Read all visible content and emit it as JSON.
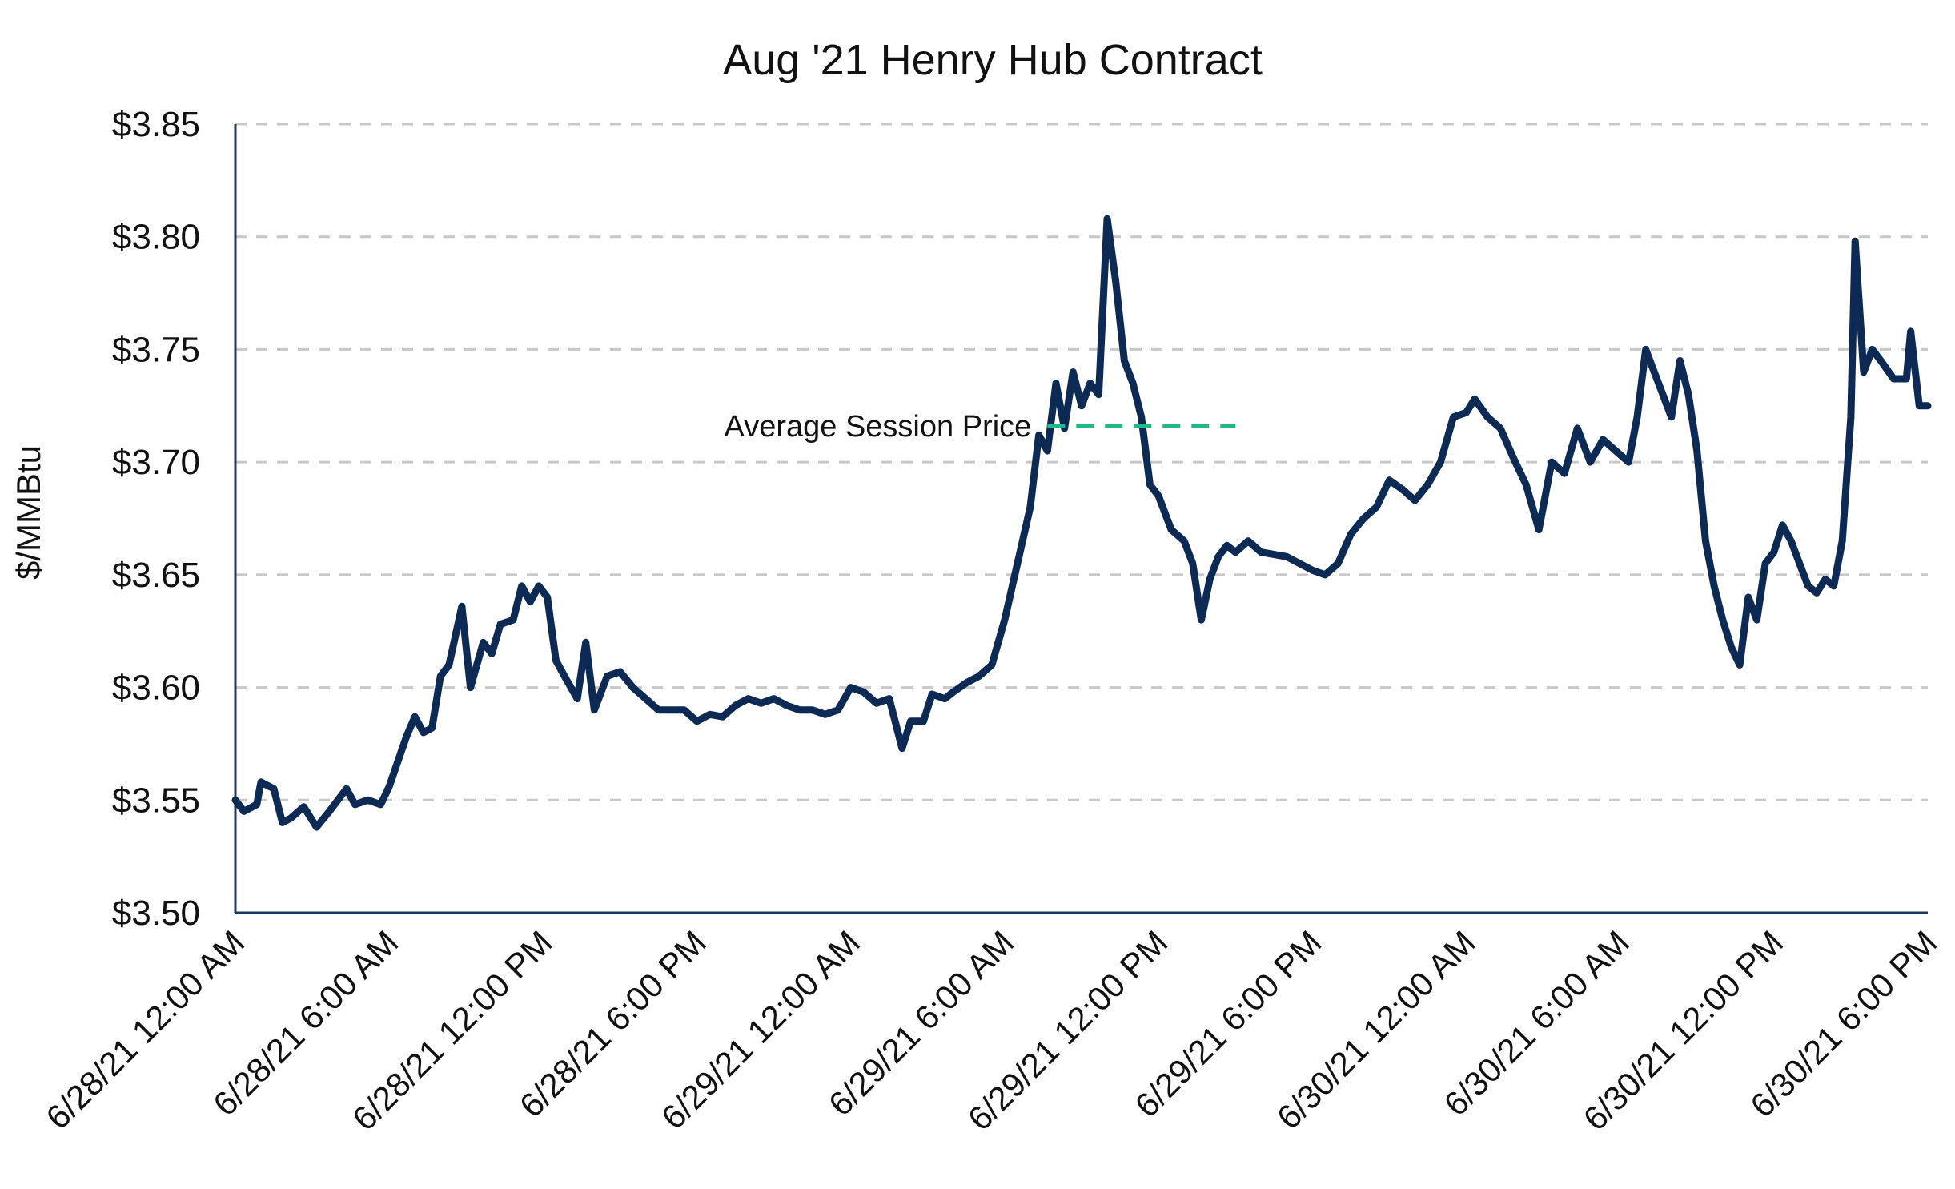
{
  "chart_data": {
    "type": "line",
    "title": "Aug '21 Henry Hub Contract",
    "ylabel": "$/MMBtu",
    "xlabel": "",
    "ylim": [
      3.5,
      3.85
    ],
    "y_ticks": [
      {
        "value": 3.85,
        "label": "$3.85"
      },
      {
        "value": 3.8,
        "label": "$3.80"
      },
      {
        "value": 3.75,
        "label": "$3.75"
      },
      {
        "value": 3.7,
        "label": "$3.70"
      },
      {
        "value": 3.65,
        "label": "$3.65"
      },
      {
        "value": 3.6,
        "label": "$3.60"
      },
      {
        "value": 3.55,
        "label": "$3.55"
      },
      {
        "value": 3.5,
        "label": "$3.50"
      }
    ],
    "x_range": [
      "2021-06-28 00:00",
      "2021-06-30 18:00"
    ],
    "x_ticks": [
      {
        "x": "2021-06-28 00:00",
        "label": "6/28/21 12:00 AM"
      },
      {
        "x": "2021-06-28 06:00",
        "label": "6/28/21 6:00 AM"
      },
      {
        "x": "2021-06-28 12:00",
        "label": "6/28/21 12:00 PM"
      },
      {
        "x": "2021-06-28 18:00",
        "label": "6/28/21 6:00 PM"
      },
      {
        "x": "2021-06-29 00:00",
        "label": "6/29/21 12:00 AM"
      },
      {
        "x": "2021-06-29 06:00",
        "label": "6/29/21 6:00 AM"
      },
      {
        "x": "2021-06-29 12:00",
        "label": "6/29/21 12:00 PM"
      },
      {
        "x": "2021-06-29 18:00",
        "label": "6/29/21 6:00 PM"
      },
      {
        "x": "2021-06-30 00:00",
        "label": "6/30/21 12:00 AM"
      },
      {
        "x": "2021-06-30 06:00",
        "label": "6/30/21 6:00 AM"
      },
      {
        "x": "2021-06-30 12:00",
        "label": "6/30/21 12:00 PM"
      },
      {
        "x": "2021-06-30 18:00",
        "label": "6/30/21 6:00 PM"
      }
    ],
    "grid": true,
    "series": [
      {
        "color": "#0d2a55",
        "points": [
          [
            "2021-06-28 00:00",
            3.55
          ],
          [
            "2021-06-28 00:20",
            3.545
          ],
          [
            "2021-06-28 00:50",
            3.548
          ],
          [
            "2021-06-28 01:00",
            3.558
          ],
          [
            "2021-06-28 01:30",
            3.555
          ],
          [
            "2021-06-28 01:50",
            3.54
          ],
          [
            "2021-06-28 02:10",
            3.542
          ],
          [
            "2021-06-28 02:40",
            3.547
          ],
          [
            "2021-06-28 03:10",
            3.538
          ],
          [
            "2021-06-28 03:40",
            3.545
          ],
          [
            "2021-06-28 04:20",
            3.555
          ],
          [
            "2021-06-28 04:40",
            3.548
          ],
          [
            "2021-06-28 05:10",
            3.55
          ],
          [
            "2021-06-28 05:40",
            3.548
          ],
          [
            "2021-06-28 06:00",
            3.556
          ],
          [
            "2021-06-28 06:40",
            3.578
          ],
          [
            "2021-06-28 07:00",
            3.587
          ],
          [
            "2021-06-28 07:20",
            3.58
          ],
          [
            "2021-06-28 07:40",
            3.582
          ],
          [
            "2021-06-28 08:00",
            3.605
          ],
          [
            "2021-06-28 08:20",
            3.61
          ],
          [
            "2021-06-28 08:50",
            3.636
          ],
          [
            "2021-06-28 09:10",
            3.6
          ],
          [
            "2021-06-28 09:40",
            3.62
          ],
          [
            "2021-06-28 10:00",
            3.615
          ],
          [
            "2021-06-28 10:20",
            3.628
          ],
          [
            "2021-06-28 10:50",
            3.63
          ],
          [
            "2021-06-28 11:10",
            3.645
          ],
          [
            "2021-06-28 11:30",
            3.638
          ],
          [
            "2021-06-28 11:50",
            3.645
          ],
          [
            "2021-06-28 12:10",
            3.64
          ],
          [
            "2021-06-28 12:30",
            3.612
          ],
          [
            "2021-06-28 12:50",
            3.605
          ],
          [
            "2021-06-28 13:20",
            3.595
          ],
          [
            "2021-06-28 13:40",
            3.62
          ],
          [
            "2021-06-28 14:00",
            3.59
          ],
          [
            "2021-06-28 14:30",
            3.605
          ],
          [
            "2021-06-28 15:00",
            3.607
          ],
          [
            "2021-06-28 15:30",
            3.6
          ],
          [
            "2021-06-28 16:00",
            3.595
          ],
          [
            "2021-06-28 16:30",
            3.59
          ],
          [
            "2021-06-28 17:30",
            3.59
          ],
          [
            "2021-06-28 18:00",
            3.585
          ],
          [
            "2021-06-28 18:30",
            3.588
          ],
          [
            "2021-06-28 19:00",
            3.587
          ],
          [
            "2021-06-28 19:30",
            3.592
          ],
          [
            "2021-06-28 20:00",
            3.595
          ],
          [
            "2021-06-28 20:30",
            3.593
          ],
          [
            "2021-06-28 21:00",
            3.595
          ],
          [
            "2021-06-28 21:30",
            3.592
          ],
          [
            "2021-06-28 22:00",
            3.59
          ],
          [
            "2021-06-28 22:30",
            3.59
          ],
          [
            "2021-06-28 23:00",
            3.588
          ],
          [
            "2021-06-28 23:30",
            3.59
          ],
          [
            "2021-06-29 00:00",
            3.6
          ],
          [
            "2021-06-29 00:30",
            3.598
          ],
          [
            "2021-06-29 01:00",
            3.593
          ],
          [
            "2021-06-29 01:30",
            3.595
          ],
          [
            "2021-06-29 02:00",
            3.573
          ],
          [
            "2021-06-29 02:20",
            3.585
          ],
          [
            "2021-06-29 02:50",
            3.585
          ],
          [
            "2021-06-29 03:10",
            3.597
          ],
          [
            "2021-06-29 03:40",
            3.595
          ],
          [
            "2021-06-29 04:00",
            3.598
          ],
          [
            "2021-06-29 04:30",
            3.602
          ],
          [
            "2021-06-29 05:00",
            3.605
          ],
          [
            "2021-06-29 05:30",
            3.61
          ],
          [
            "2021-06-29 06:00",
            3.63
          ],
          [
            "2021-06-29 06:30",
            3.655
          ],
          [
            "2021-06-29 07:00",
            3.68
          ],
          [
            "2021-06-29 07:20",
            3.712
          ],
          [
            "2021-06-29 07:40",
            3.705
          ],
          [
            "2021-06-29 08:00",
            3.735
          ],
          [
            "2021-06-29 08:20",
            3.715
          ],
          [
            "2021-06-29 08:40",
            3.74
          ],
          [
            "2021-06-29 09:00",
            3.725
          ],
          [
            "2021-06-29 09:20",
            3.735
          ],
          [
            "2021-06-29 09:40",
            3.73
          ],
          [
            "2021-06-29 10:00",
            3.808
          ],
          [
            "2021-06-29 10:20",
            3.78
          ],
          [
            "2021-06-29 10:40",
            3.745
          ],
          [
            "2021-06-29 11:00",
            3.735
          ],
          [
            "2021-06-29 11:20",
            3.72
          ],
          [
            "2021-06-29 11:40",
            3.69
          ],
          [
            "2021-06-29 12:00",
            3.685
          ],
          [
            "2021-06-29 12:30",
            3.67
          ],
          [
            "2021-06-29 13:00",
            3.665
          ],
          [
            "2021-06-29 13:20",
            3.655
          ],
          [
            "2021-06-29 13:40",
            3.63
          ],
          [
            "2021-06-29 14:00",
            3.648
          ],
          [
            "2021-06-29 14:20",
            3.658
          ],
          [
            "2021-06-29 14:40",
            3.663
          ],
          [
            "2021-06-29 15:00",
            3.66
          ],
          [
            "2021-06-29 15:30",
            3.665
          ],
          [
            "2021-06-29 16:00",
            3.66
          ],
          [
            "2021-06-29 17:00",
            3.658
          ],
          [
            "2021-06-29 17:30",
            3.655
          ],
          [
            "2021-06-29 18:00",
            3.652
          ],
          [
            "2021-06-29 18:30",
            3.65
          ],
          [
            "2021-06-29 19:00",
            3.655
          ],
          [
            "2021-06-29 19:30",
            3.668
          ],
          [
            "2021-06-29 20:00",
            3.675
          ],
          [
            "2021-06-29 20:30",
            3.68
          ],
          [
            "2021-06-29 21:00",
            3.692
          ],
          [
            "2021-06-29 21:30",
            3.688
          ],
          [
            "2021-06-29 22:00",
            3.683
          ],
          [
            "2021-06-29 22:30",
            3.69
          ],
          [
            "2021-06-29 23:00",
            3.7
          ],
          [
            "2021-06-29 23:30",
            3.72
          ],
          [
            "2021-06-30 00:00",
            3.722
          ],
          [
            "2021-06-30 00:20",
            3.728
          ],
          [
            "2021-06-30 00:50",
            3.72
          ],
          [
            "2021-06-30 01:20",
            3.715
          ],
          [
            "2021-06-30 01:50",
            3.702
          ],
          [
            "2021-06-30 02:20",
            3.69
          ],
          [
            "2021-06-30 02:50",
            3.67
          ],
          [
            "2021-06-30 03:20",
            3.7
          ],
          [
            "2021-06-30 03:50",
            3.695
          ],
          [
            "2021-06-30 04:20",
            3.715
          ],
          [
            "2021-06-30 04:50",
            3.7
          ],
          [
            "2021-06-30 05:20",
            3.71
          ],
          [
            "2021-06-30 05:50",
            3.705
          ],
          [
            "2021-06-30 06:20",
            3.7
          ],
          [
            "2021-06-30 06:40",
            3.72
          ],
          [
            "2021-06-30 07:00",
            3.75
          ],
          [
            "2021-06-30 07:20",
            3.74
          ],
          [
            "2021-06-30 07:40",
            3.73
          ],
          [
            "2021-06-30 08:00",
            3.72
          ],
          [
            "2021-06-30 08:20",
            3.745
          ],
          [
            "2021-06-30 08:40",
            3.73
          ],
          [
            "2021-06-30 09:00",
            3.705
          ],
          [
            "2021-06-30 09:20",
            3.665
          ],
          [
            "2021-06-30 09:40",
            3.645
          ],
          [
            "2021-06-30 10:00",
            3.63
          ],
          [
            "2021-06-30 10:20",
            3.618
          ],
          [
            "2021-06-30 10:40",
            3.61
          ],
          [
            "2021-06-30 11:00",
            3.64
          ],
          [
            "2021-06-30 11:20",
            3.63
          ],
          [
            "2021-06-30 11:40",
            3.655
          ],
          [
            "2021-06-30 12:00",
            3.66
          ],
          [
            "2021-06-30 12:20",
            3.672
          ],
          [
            "2021-06-30 12:40",
            3.665
          ],
          [
            "2021-06-30 13:00",
            3.655
          ],
          [
            "2021-06-30 13:20",
            3.645
          ],
          [
            "2021-06-30 13:40",
            3.642
          ],
          [
            "2021-06-30 14:00",
            3.648
          ],
          [
            "2021-06-30 14:20",
            3.645
          ],
          [
            "2021-06-30 14:40",
            3.665
          ],
          [
            "2021-06-30 15:00",
            3.72
          ],
          [
            "2021-06-30 15:10",
            3.798
          ],
          [
            "2021-06-30 15:30",
            3.74
          ],
          [
            "2021-06-30 15:50",
            3.75
          ],
          [
            "2021-06-30 16:10",
            3.745
          ],
          [
            "2021-06-30 16:40",
            3.737
          ],
          [
            "2021-06-30 17:10",
            3.737
          ],
          [
            "2021-06-30 17:20",
            3.758
          ],
          [
            "2021-06-30 17:40",
            3.725
          ],
          [
            "2021-06-30 18:00",
            3.725
          ]
        ]
      }
    ],
    "annotations": [
      {
        "label": "Average Session Price",
        "value": 3.716,
        "from": "2021-06-29 07:40",
        "to": "2021-06-29 15:00",
        "color": "#1fb98a"
      }
    ]
  }
}
